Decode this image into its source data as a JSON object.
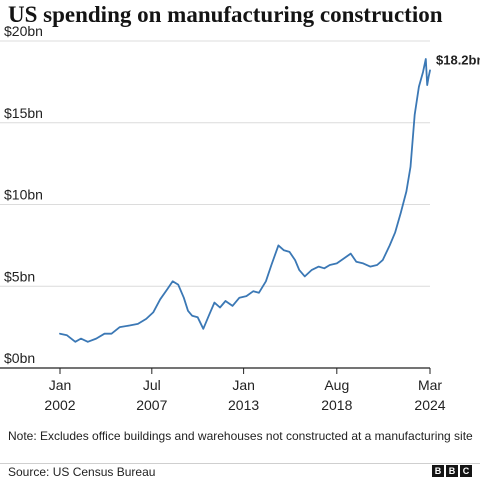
{
  "title": "US spending on manufacturing construction",
  "note": "Note: Excludes office buildings and warehouses not constructed at a manufacturing site",
  "source": "Source: US Census Bureau",
  "logo": [
    "B",
    "B",
    "C"
  ],
  "colors": {
    "line": "#3b78b5",
    "grid": "#dcdcdc",
    "axis": "#222222"
  },
  "chart_data": {
    "type": "line",
    "title": "US spending on manufacturing construction",
    "xlabel": "",
    "ylabel": "",
    "y_unit": "$bn",
    "ylim": [
      0,
      20
    ],
    "y_ticks": [
      {
        "value": 0,
        "label": "$0bn"
      },
      {
        "value": 5,
        "label": "$5bn"
      },
      {
        "value": 10,
        "label": "$10bn"
      },
      {
        "value": 15,
        "label": "$15bn"
      },
      {
        "value": 20,
        "label": "$20bn"
      }
    ],
    "x_range": [
      "2002-01",
      "2024-03"
    ],
    "x_ticks": [
      {
        "date": "2002-01",
        "label1": "Jan",
        "label2": "2002"
      },
      {
        "date": "2007-07",
        "label1": "Jul",
        "label2": "2007"
      },
      {
        "date": "2013-01",
        "label1": "Jan",
        "label2": "2013"
      },
      {
        "date": "2018-08",
        "label1": "Aug",
        "label2": "2018"
      },
      {
        "date": "2024-03",
        "label1": "Mar",
        "label2": "2024"
      }
    ],
    "grid": true,
    "end_label": "$18.2bn",
    "series": [
      {
        "points": [
          [
            "2002-01",
            2.1
          ],
          [
            "2002-06",
            2.0
          ],
          [
            "2002-12",
            1.6
          ],
          [
            "2003-04",
            1.8
          ],
          [
            "2003-09",
            1.6
          ],
          [
            "2004-03",
            1.8
          ],
          [
            "2004-09",
            2.1
          ],
          [
            "2005-02",
            2.1
          ],
          [
            "2005-08",
            2.5
          ],
          [
            "2006-03",
            2.6
          ],
          [
            "2006-09",
            2.7
          ],
          [
            "2007-03",
            3.0
          ],
          [
            "2007-08",
            3.4
          ],
          [
            "2008-01",
            4.2
          ],
          [
            "2008-06",
            4.8
          ],
          [
            "2008-10",
            5.3
          ],
          [
            "2009-02",
            5.1
          ],
          [
            "2009-06",
            4.3
          ],
          [
            "2009-09",
            3.5
          ],
          [
            "2009-12",
            3.2
          ],
          [
            "2010-04",
            3.1
          ],
          [
            "2010-08",
            2.4
          ],
          [
            "2010-12",
            3.2
          ],
          [
            "2011-04",
            4.0
          ],
          [
            "2011-08",
            3.7
          ],
          [
            "2011-12",
            4.1
          ],
          [
            "2012-05",
            3.8
          ],
          [
            "2012-10",
            4.3
          ],
          [
            "2013-03",
            4.4
          ],
          [
            "2013-08",
            4.7
          ],
          [
            "2013-12",
            4.6
          ],
          [
            "2014-05",
            5.3
          ],
          [
            "2014-09",
            6.3
          ],
          [
            "2015-02",
            7.5
          ],
          [
            "2015-06",
            7.2
          ],
          [
            "2015-10",
            7.1
          ],
          [
            "2016-02",
            6.6
          ],
          [
            "2016-05",
            6.0
          ],
          [
            "2016-09",
            5.6
          ],
          [
            "2017-02",
            6.0
          ],
          [
            "2017-07",
            6.2
          ],
          [
            "2017-11",
            6.1
          ],
          [
            "2018-03",
            6.3
          ],
          [
            "2018-08",
            6.4
          ],
          [
            "2019-01",
            6.7
          ],
          [
            "2019-06",
            7.0
          ],
          [
            "2019-10",
            6.5
          ],
          [
            "2020-03",
            6.4
          ],
          [
            "2020-08",
            6.2
          ],
          [
            "2021-01",
            6.3
          ],
          [
            "2021-05",
            6.6
          ],
          [
            "2021-10",
            7.5
          ],
          [
            "2022-02",
            8.3
          ],
          [
            "2022-06",
            9.5
          ],
          [
            "2022-10",
            10.8
          ],
          [
            "2023-01",
            12.3
          ],
          [
            "2023-04",
            15.5
          ],
          [
            "2023-07",
            17.2
          ],
          [
            "2023-10",
            18.1
          ],
          [
            "2023-12",
            18.9
          ],
          [
            "2024-01",
            17.3
          ],
          [
            "2024-02",
            17.8
          ],
          [
            "2024-03",
            18.2
          ]
        ]
      }
    ]
  }
}
